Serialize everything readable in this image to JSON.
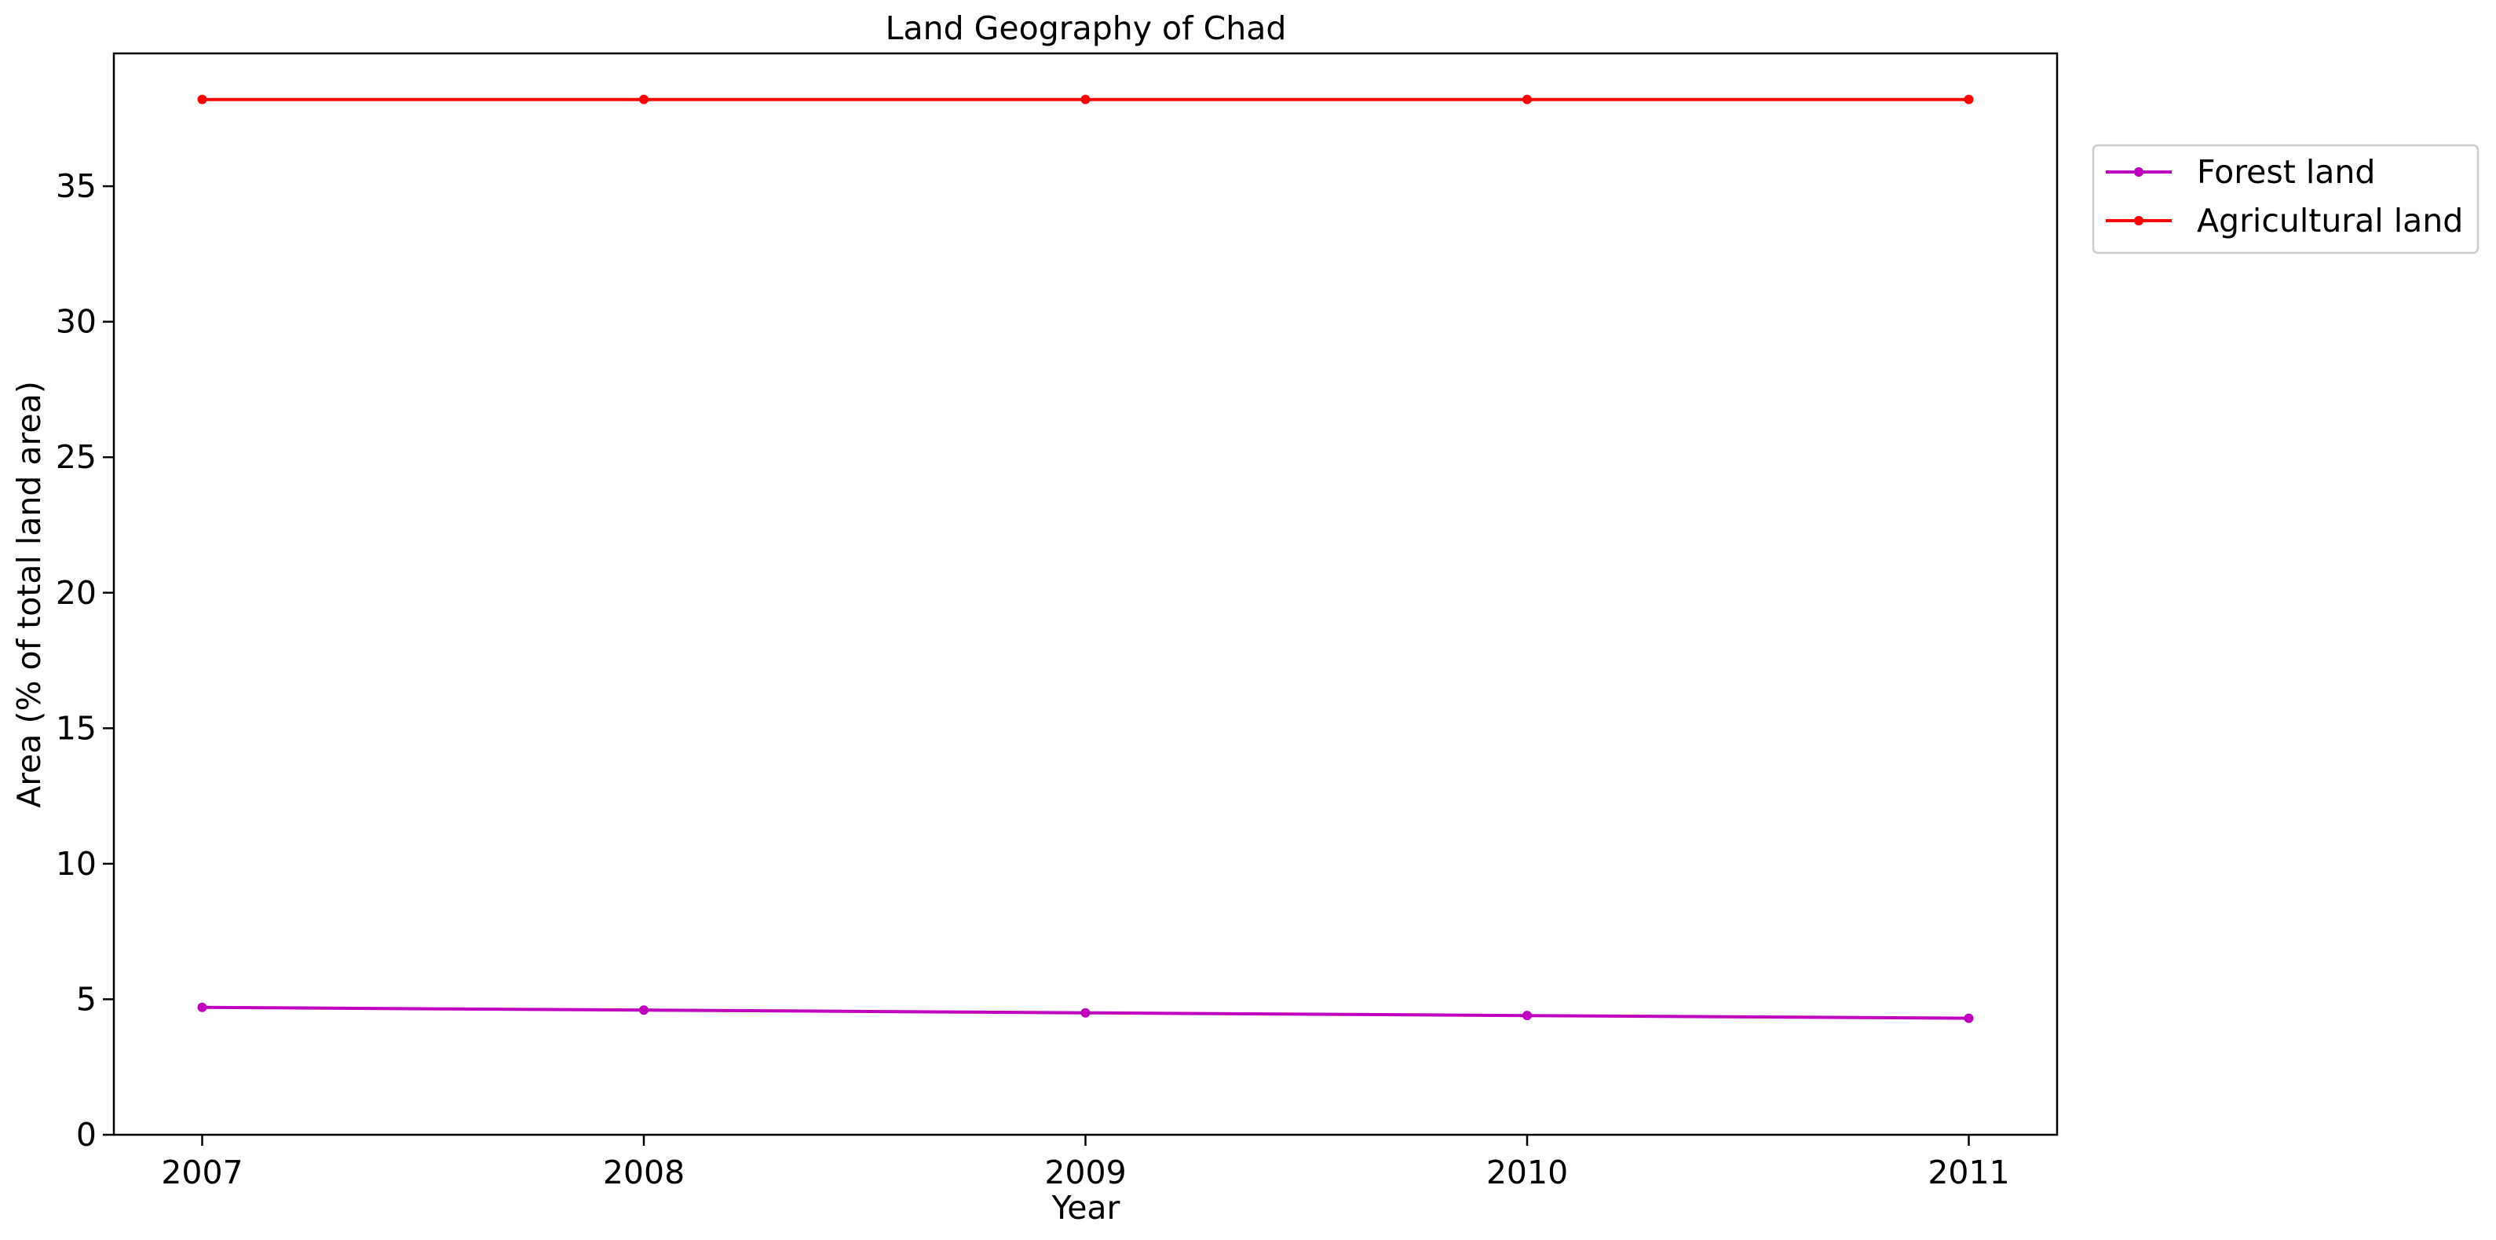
{
  "chart_data": {
    "type": "line",
    "title": "Land Geography of Chad",
    "xlabel": "Year",
    "ylabel": "Area (% of total land area)",
    "x": [
      2007,
      2008,
      2009,
      2010,
      2011
    ],
    "x_tick_labels": [
      "2007",
      "2008",
      "2009",
      "2010",
      "2011"
    ],
    "y_ticks": [
      0,
      5,
      10,
      15,
      20,
      25,
      30,
      35
    ],
    "y_tick_labels": [
      "0",
      "5",
      "10",
      "15",
      "20",
      "25",
      "30",
      "35"
    ],
    "xlim": [
      2006.8,
      2011.2
    ],
    "ylim": [
      0,
      39.9
    ],
    "grid": false,
    "legend_position": "outside upper right",
    "series": [
      {
        "name": "Forest land",
        "color": "#bf00bf",
        "marker": "circle",
        "values": [
          4.7,
          4.6,
          4.5,
          4.4,
          4.3
        ]
      },
      {
        "name": "Agricultural land",
        "color": "#ff0000",
        "marker": "circle",
        "values": [
          38.2,
          38.2,
          38.2,
          38.2,
          38.2
        ]
      }
    ]
  }
}
